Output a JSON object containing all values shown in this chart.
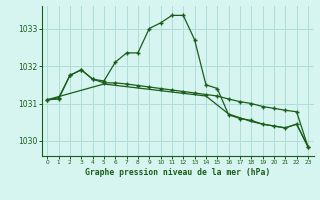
{
  "title": "Graphe pression niveau de la mer (hPa)",
  "background_color": "#d6f5f0",
  "grid_color": "#b0ddd8",
  "line_color": "#1a5c1a",
  "xlim": [
    -0.5,
    23.5
  ],
  "ylim": [
    1029.6,
    1033.6
  ],
  "yticks": [
    1030,
    1031,
    1032,
    1033
  ],
  "xticks": [
    0,
    1,
    2,
    3,
    4,
    5,
    6,
    7,
    8,
    9,
    10,
    11,
    12,
    13,
    14,
    15,
    16,
    17,
    18,
    19,
    20,
    21,
    22,
    23
  ],
  "curve1_x": [
    0,
    1,
    2,
    3,
    4,
    5,
    6,
    7,
    8,
    9,
    10,
    11,
    12,
    13,
    14,
    15,
    16,
    17,
    18,
    19,
    20,
    21,
    22,
    23
  ],
  "curve1_y": [
    1031.1,
    1031.15,
    1031.75,
    1031.9,
    1031.65,
    1031.6,
    1032.1,
    1032.35,
    1032.35,
    1033.0,
    1033.15,
    1033.35,
    1033.35,
    1032.7,
    1031.5,
    1031.4,
    1030.7,
    1030.6,
    1030.55,
    1030.45,
    1030.4,
    1030.35,
    1030.45,
    1029.85
  ],
  "curve2_x": [
    0,
    1,
    2,
    3,
    4,
    5,
    6,
    7,
    8,
    9,
    10,
    11,
    12,
    13,
    14,
    15,
    16,
    17,
    18,
    19,
    20,
    21,
    22,
    23
  ],
  "curve2_y": [
    1031.1,
    1031.12,
    1031.75,
    1031.9,
    1031.65,
    1031.55,
    1031.55,
    1031.52,
    1031.48,
    1031.44,
    1031.4,
    1031.36,
    1031.32,
    1031.28,
    1031.24,
    1031.2,
    1031.12,
    1031.05,
    1031.0,
    1030.92,
    1030.87,
    1030.82,
    1030.78,
    1029.85
  ],
  "curve3_x": [
    0,
    5,
    14,
    16,
    17,
    18,
    19,
    20,
    21,
    22,
    23
  ],
  "curve3_y": [
    1031.1,
    1031.52,
    1031.2,
    1030.72,
    1030.62,
    1030.52,
    1030.45,
    1030.4,
    1030.35,
    1030.45,
    1029.85
  ]
}
